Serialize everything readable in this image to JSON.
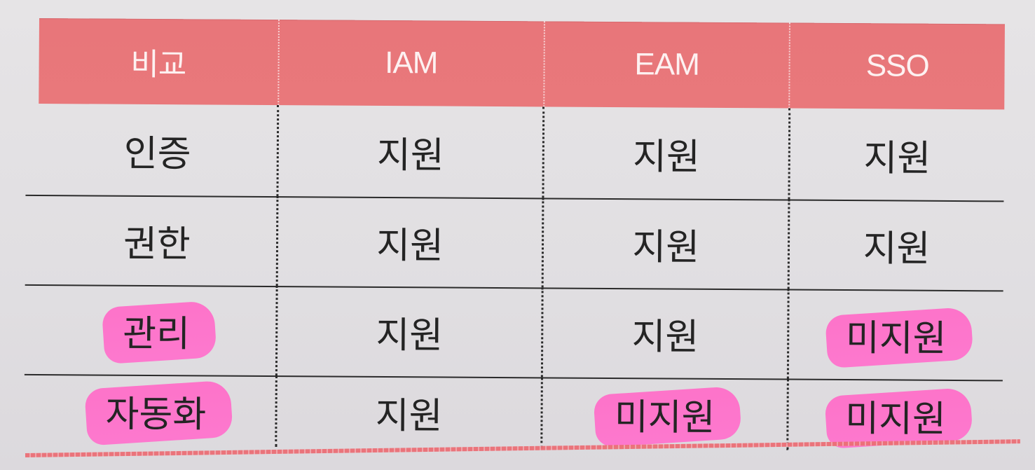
{
  "table": {
    "headers": [
      "비교",
      "IAM",
      "EAM",
      "SSO"
    ],
    "rows": [
      {
        "label": "인증",
        "values": [
          "지원",
          "지원",
          "지원"
        ]
      },
      {
        "label": "권한",
        "values": [
          "지원",
          "지원",
          "지원"
        ]
      },
      {
        "label": "관리",
        "values": [
          "지원",
          "지원",
          "미지원"
        ]
      },
      {
        "label": "자동화",
        "values": [
          "지원",
          "미지원",
          "미지원"
        ]
      }
    ]
  },
  "colors": {
    "header_background": "#e8767a",
    "highlight": "#ff73cd",
    "text": "#242424"
  }
}
